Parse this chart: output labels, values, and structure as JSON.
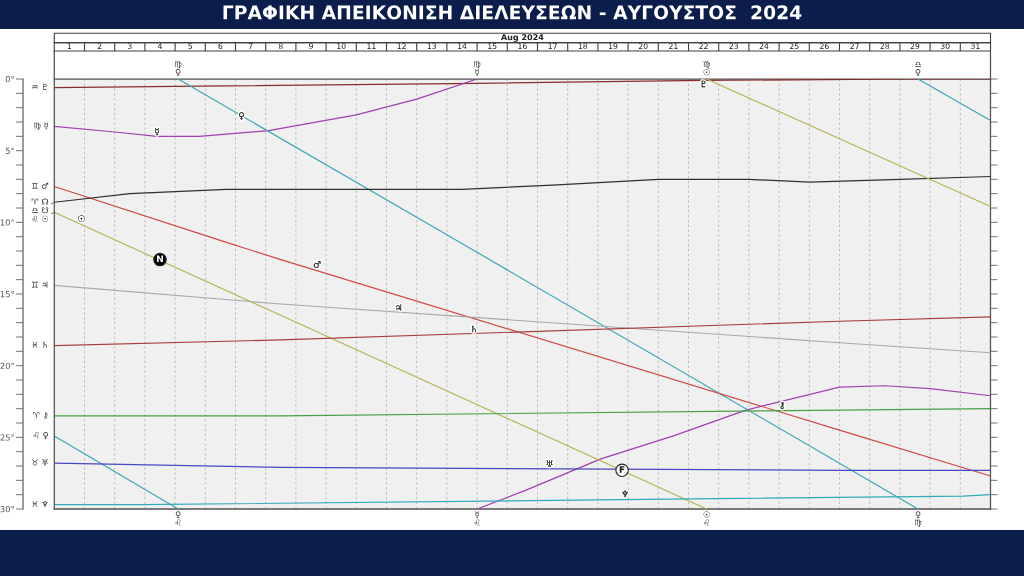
{
  "chart_data": {
    "type": "line",
    "title": "ΓΡΑΦΙΚΗ ΑΠΕΙΚΟΝΙΣΗ ΔΙΕΛΕΥΣΕΩΝ - ΑΥΓΟΥΣΤΟΣ  2024",
    "xlabel": "Aug 2024",
    "xlim": [
      0.5,
      31.5
    ],
    "xticks": [
      1,
      {
        "value": 1.5,
        "label": null
      },
      2,
      {
        "value": 2.5,
        "label": null
      },
      3,
      {
        "value": 3.5,
        "label": null
      },
      4,
      {
        "value": 4.5,
        "label": null
      },
      5,
      {
        "value": 5.5,
        "label": null
      },
      6,
      {
        "value": 6.5,
        "label": null
      },
      7,
      {
        "value": 7.5,
        "label": null
      },
      8,
      {
        "value": 8.5,
        "label": null
      },
      9,
      {
        "value": 9.5,
        "label": null
      },
      10,
      {
        "value": 10.5,
        "label": null
      },
      11,
      {
        "value": 11.5,
        "label": null
      },
      12,
      {
        "value": 12.5,
        "label": null
      },
      13,
      {
        "value": 13.5,
        "label": null
      },
      14,
      {
        "value": 14.5,
        "label": null
      },
      15,
      {
        "value": 15.5,
        "label": null
      },
      16,
      {
        "value": 16.5,
        "label": null
      },
      17,
      {
        "value": 17.5,
        "label": null
      },
      18,
      {
        "value": 18.5,
        "label": null
      },
      19,
      {
        "value": 19.5,
        "label": null
      },
      20,
      {
        "value": 20.5,
        "label": null
      },
      21,
      {
        "value": 21.5,
        "label": null
      },
      22,
      {
        "value": 22.5,
        "label": null
      },
      23,
      {
        "value": 23.5,
        "label": null
      },
      24,
      {
        "value": 24.5,
        "label": null
      },
      25,
      {
        "value": 25.5,
        "label": null
      },
      26,
      {
        "value": 26.5,
        "label": null
      },
      27,
      {
        "value": 27.5,
        "label": null
      },
      28,
      {
        "value": 28.5,
        "label": null
      },
      29,
      {
        "value": 29.5,
        "label": null
      },
      30,
      {
        "value": 30.5,
        "label": null
      },
      31
    ],
    "ylim": [
      30,
      0
    ],
    "yticks": [
      {
        "value": 0,
        "label": "0°"
      },
      {
        "value": 1,
        "label": null
      },
      {
        "value": 2,
        "label": null
      },
      {
        "value": 3,
        "label": null
      },
      {
        "value": 4,
        "label": null
      },
      {
        "value": 5,
        "label": "5°"
      },
      {
        "value": 6,
        "label": null
      },
      {
        "value": 7,
        "label": null
      },
      {
        "value": 8,
        "label": null
      },
      {
        "value": 9,
        "label": null
      },
      {
        "value": 10,
        "label": "10°"
      },
      {
        "value": 11,
        "label": null
      },
      {
        "value": 12,
        "label": null
      },
      {
        "value": 13,
        "label": null
      },
      {
        "value": 14,
        "label": null
      },
      {
        "value": 15,
        "label": "15°"
      },
      {
        "value": 16,
        "label": null
      },
      {
        "value": 17,
        "label": null
      },
      {
        "value": 18,
        "label": null
      },
      {
        "value": 19,
        "label": null
      },
      {
        "value": 20,
        "label": "20°"
      },
      {
        "value": 21,
        "label": null
      },
      {
        "value": 22,
        "label": null
      },
      {
        "value": 23,
        "label": null
      },
      {
        "value": 24,
        "label": null
      },
      {
        "value": 25,
        "label": "25°"
      },
      {
        "value": 26,
        "label": null
      },
      {
        "value": 27,
        "label": null
      },
      {
        "value": 28,
        "label": null
      },
      {
        "value": 29,
        "label": null
      },
      {
        "value": 30,
        "label": "30°"
      }
    ],
    "grid": "x",
    "series": [
      {
        "color": "#8b2c2c",
        "x": [
          0.5,
          5.3,
          14.5,
          22.0,
          29.0,
          31.5
        ],
        "values": [
          0.6,
          0.5,
          0.3,
          0.1,
          0.0,
          0.0
        ]
      },
      {
        "color": "#a040b0",
        "x": [
          0.5,
          2.5,
          3.9,
          5.3,
          7.6,
          10.5,
          12.5,
          14.5
        ],
        "values": [
          3.3,
          3.7,
          4.0,
          4.0,
          3.6,
          2.5,
          1.4,
          0.0
        ]
      },
      {
        "color": "#a040b0",
        "x": [
          14.5,
          16.1,
          18.6,
          21.0,
          23.4,
          26.5,
          28.0,
          29.5,
          31.5
        ],
        "values": [
          30.0,
          28.7,
          26.5,
          24.9,
          23.1,
          21.5,
          21.4,
          21.6,
          22.1
        ]
      },
      {
        "color": "#3aa6b4",
        "x": [
          0.5,
          4.6
        ],
        "values": [
          24.9,
          30.0
        ]
      },
      {
        "color": "#3aa6b4",
        "x": [
          4.6,
          13.2,
          29.1
        ],
        "values": [
          0.0,
          10.5,
          30.0
        ]
      },
      {
        "color": "#3aa6b4",
        "x": [
          29.1,
          31.5
        ],
        "values": [
          0.0,
          2.9
        ]
      },
      {
        "color": "#d04848",
        "x": [
          0.5,
          6.2,
          8.0,
          26.5,
          31.5
        ],
        "values": [
          7.5,
          11.4,
          12.6,
          24.5,
          27.7
        ]
      },
      {
        "color": "#303030",
        "x": [
          0.5,
          3.0,
          6.2,
          10.0,
          14.0,
          17.0,
          20.5,
          23.5,
          25.5,
          28.5,
          31.5
        ],
        "values": [
          8.6,
          8.0,
          7.7,
          7.7,
          7.7,
          7.4,
          7.0,
          7.0,
          7.2,
          7.0,
          6.8
        ]
      },
      {
        "color": "#b4b450",
        "x": [
          0.5,
          22.1
        ],
        "values": [
          9.3,
          30.0
        ]
      },
      {
        "color": "#b4b450",
        "x": [
          22.1,
          31.5
        ],
        "values": [
          0.0,
          8.9
        ]
      },
      {
        "color": "#a8a8a8",
        "x": [
          0.5,
          8.0,
          26.5,
          31.5
        ],
        "values": [
          14.4,
          15.7,
          18.4,
          19.1
        ]
      },
      {
        "color": "#a83c3c",
        "x": [
          0.5,
          8.0,
          26.5,
          31.5
        ],
        "values": [
          18.6,
          18.2,
          16.9,
          16.6
        ]
      },
      {
        "color": "#44a044",
        "x": [
          0.5,
          8.0,
          26.5,
          31.5
        ],
        "values": [
          23.5,
          23.5,
          23.1,
          23.0
        ]
      },
      {
        "color": "#4848c0",
        "x": [
          0.5,
          8.0,
          26.5,
          31.5
        ],
        "values": [
          26.8,
          27.1,
          27.3,
          27.3
        ]
      },
      {
        "color": "#30aabb",
        "x": [
          0.5,
          3.3,
          17.0,
          30.6,
          31.5
        ],
        "values": [
          29.7,
          29.7,
          29.4,
          29.1,
          29.0
        ]
      },
      {
        "type": "scatter",
        "marker": "circle",
        "x": [
          4.0,
          19.3
        ],
        "values": [
          12.6,
          27.3
        ],
        "colors": [
          "#000000",
          "#ffffff"
        ]
      }
    ],
    "annotations": [
      {
        "text": "♒ ♇",
        "x": 0.5,
        "y": 0.6
      },
      {
        "text": "♍ ☿",
        "x": 0.5,
        "y": 3.3
      },
      {
        "text": "♊ ♂",
        "x": 0.5,
        "y": 7.5
      },
      {
        "text": "♈ ☊",
        "x": 0.5,
        "y": 8.6
      },
      {
        "text": "♎ ☋",
        "x": 0.5,
        "y": 8.6
      },
      {
        "text": "♌ ☉",
        "x": 0.5,
        "y": 9.3
      },
      {
        "text": "♊ ♃",
        "x": 0.5,
        "y": 14.4
      },
      {
        "text": "♓ ♄",
        "x": 0.5,
        "y": 18.6
      },
      {
        "text": "♈ ⚷",
        "x": 0.5,
        "y": 23.5
      },
      {
        "text": "♌ ♀",
        "x": 0.5,
        "y": 24.9
      },
      {
        "text": "♉ ♅",
        "x": 0.5,
        "y": 26.8
      },
      {
        "text": "♓ ♆",
        "x": 0.5,
        "y": 29.7
      },
      {
        "text": "♍\n♀",
        "x": 4.6,
        "y": 0
      },
      {
        "text": "♍\n☿",
        "x": 14.5,
        "y": 0
      },
      {
        "text": "♍\n☉",
        "x": 22.1,
        "y": 0
      },
      {
        "text": "♎\n♀",
        "x": 29.1,
        "y": 0
      },
      {
        "text": "♀\n♌",
        "x": 4.6,
        "y": 30
      },
      {
        "text": "☿\n♌",
        "x": 14.5,
        "y": 30
      },
      {
        "text": "☉\n♌",
        "x": 22.1,
        "y": 30
      },
      {
        "text": "♀\n♍",
        "x": 29.1,
        "y": 30
      },
      {
        "text": "☉",
        "x": 1.4,
        "y": 9.8
      },
      {
        "text": "☿",
        "x": 3.9,
        "y": 3.7
      },
      {
        "text": "♀",
        "x": 6.7,
        "y": 2.6
      },
      {
        "text": "♂",
        "x": 9.2,
        "y": 13.0
      },
      {
        "text": "♃",
        "x": 11.9,
        "y": 16.0
      },
      {
        "text": "♄",
        "x": 14.4,
        "y": 17.5
      },
      {
        "text": "♅",
        "x": 16.9,
        "y": 26.9
      },
      {
        "text": "♆",
        "x": 19.4,
        "y": 29.0
      },
      {
        "text": "♇",
        "x": 22.0,
        "y": 0.4
      },
      {
        "text": "⚷",
        "x": 24.6,
        "y": 22.8
      },
      {
        "text": "N",
        "x": 4.0,
        "y": 12.6
      },
      {
        "text": "F",
        "x": 19.3,
        "y": 27.3
      }
    ]
  }
}
